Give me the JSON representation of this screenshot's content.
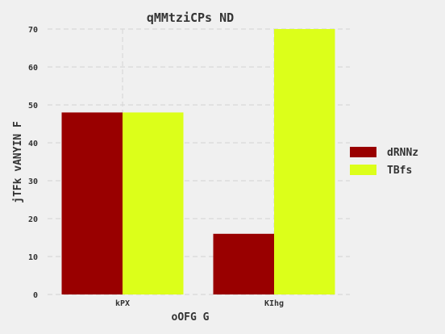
{
  "chart_data": {
    "type": "bar",
    "title": "qMMtziCPs ND",
    "xlabel": "oOFG G",
    "ylabel": "jTFk vANYIN F",
    "categories": [
      "kPX",
      "KIhg"
    ],
    "series": [
      {
        "name": "dRNNz",
        "values": [
          48,
          16
        ],
        "color": "#990000"
      },
      {
        "name": "TBfs",
        "values": [
          48,
          70
        ],
        "color": "#dcff1a"
      }
    ],
    "ylim": [
      0,
      70
    ],
    "yticks": [
      0,
      10,
      20,
      30,
      40,
      50,
      60,
      70
    ],
    "grid": true,
    "legend_position": "right"
  }
}
